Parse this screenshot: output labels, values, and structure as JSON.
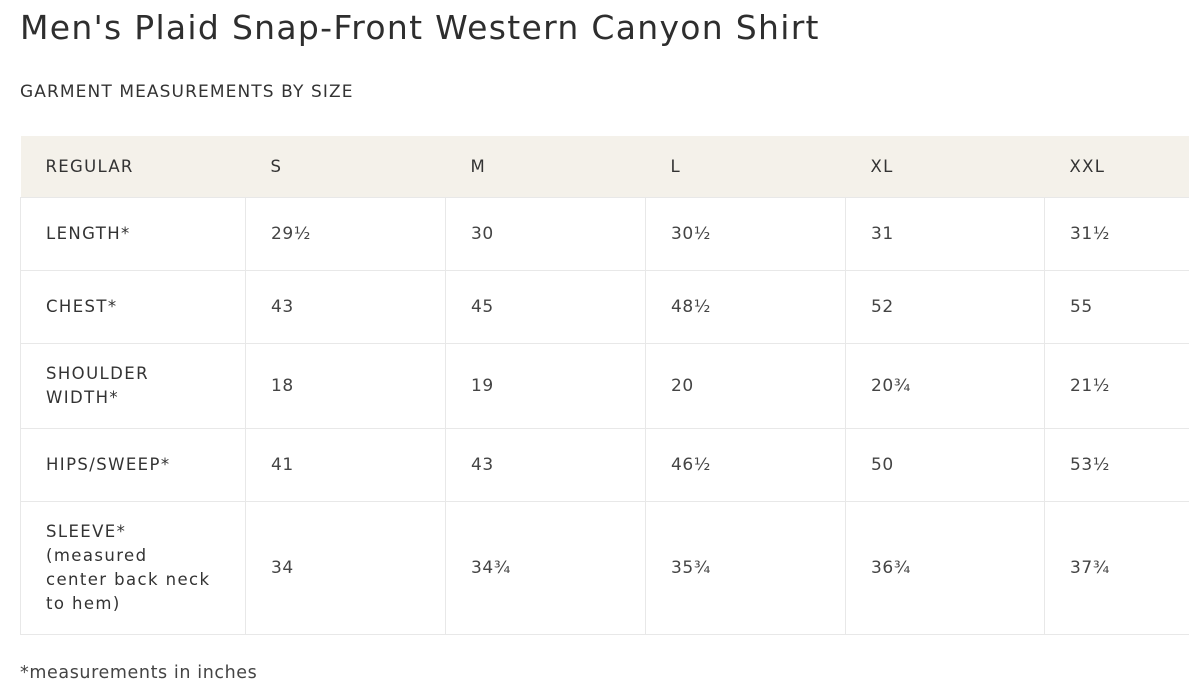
{
  "page": {
    "title": "Men's Plaid Snap-Front Western Canyon Shirt",
    "subtitle": "GARMENT MEASUREMENTS BY SIZE",
    "footnote": "*measurements in inches"
  },
  "table": {
    "headers": [
      "REGULAR",
      "S",
      "M",
      "L",
      "XL",
      "XXL"
    ],
    "rows": [
      {
        "label": "LENGTH*",
        "values": [
          "29½",
          "30",
          "30½",
          "31",
          "31½"
        ]
      },
      {
        "label": "CHEST*",
        "values": [
          "43",
          "45",
          "48½",
          "52",
          "55"
        ]
      },
      {
        "label_lines": [
          "SHOULDER",
          "WIDTH*"
        ],
        "values": [
          "18",
          "19",
          "20",
          "20¾",
          "21½"
        ]
      },
      {
        "label": "HIPS/SWEEP*",
        "values": [
          "41",
          "43",
          "46½",
          "50",
          "53½"
        ]
      },
      {
        "label_lines": [
          "SLEEVE*",
          "(measured",
          "center back neck",
          "to hem)"
        ],
        "values": [
          "34",
          "34¾",
          "35¾",
          "36¾",
          "37¾"
        ]
      }
    ]
  },
  "colors": {
    "header_background": "#f4f1ea",
    "border": "#e8e8e8",
    "text": "#333333"
  }
}
